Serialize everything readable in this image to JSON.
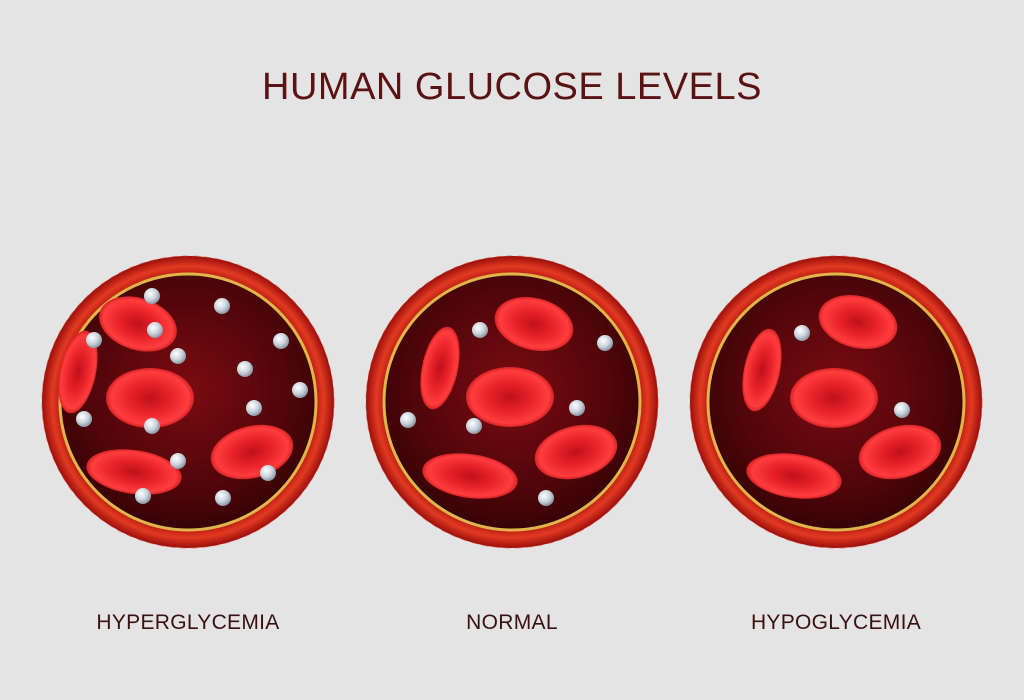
{
  "title": "HUMAN GLUCOSE LEVELS",
  "colors": {
    "background": "#e4e4e4",
    "title": "#5a1212",
    "vessel_wall": "#c8201a",
    "inner_ring": "#e0b64a",
    "plasma": "#4a0408",
    "red_cell": "#d8191f",
    "glucose": "#c9d2dc"
  },
  "panels": [
    {
      "label": "HYPERGLYCEMIA",
      "glucose_level": "high"
    },
    {
      "label": "NORMAL",
      "glucose_level": "normal"
    },
    {
      "label": "HYPOGLYCEMIA",
      "glucose_level": "low"
    }
  ]
}
